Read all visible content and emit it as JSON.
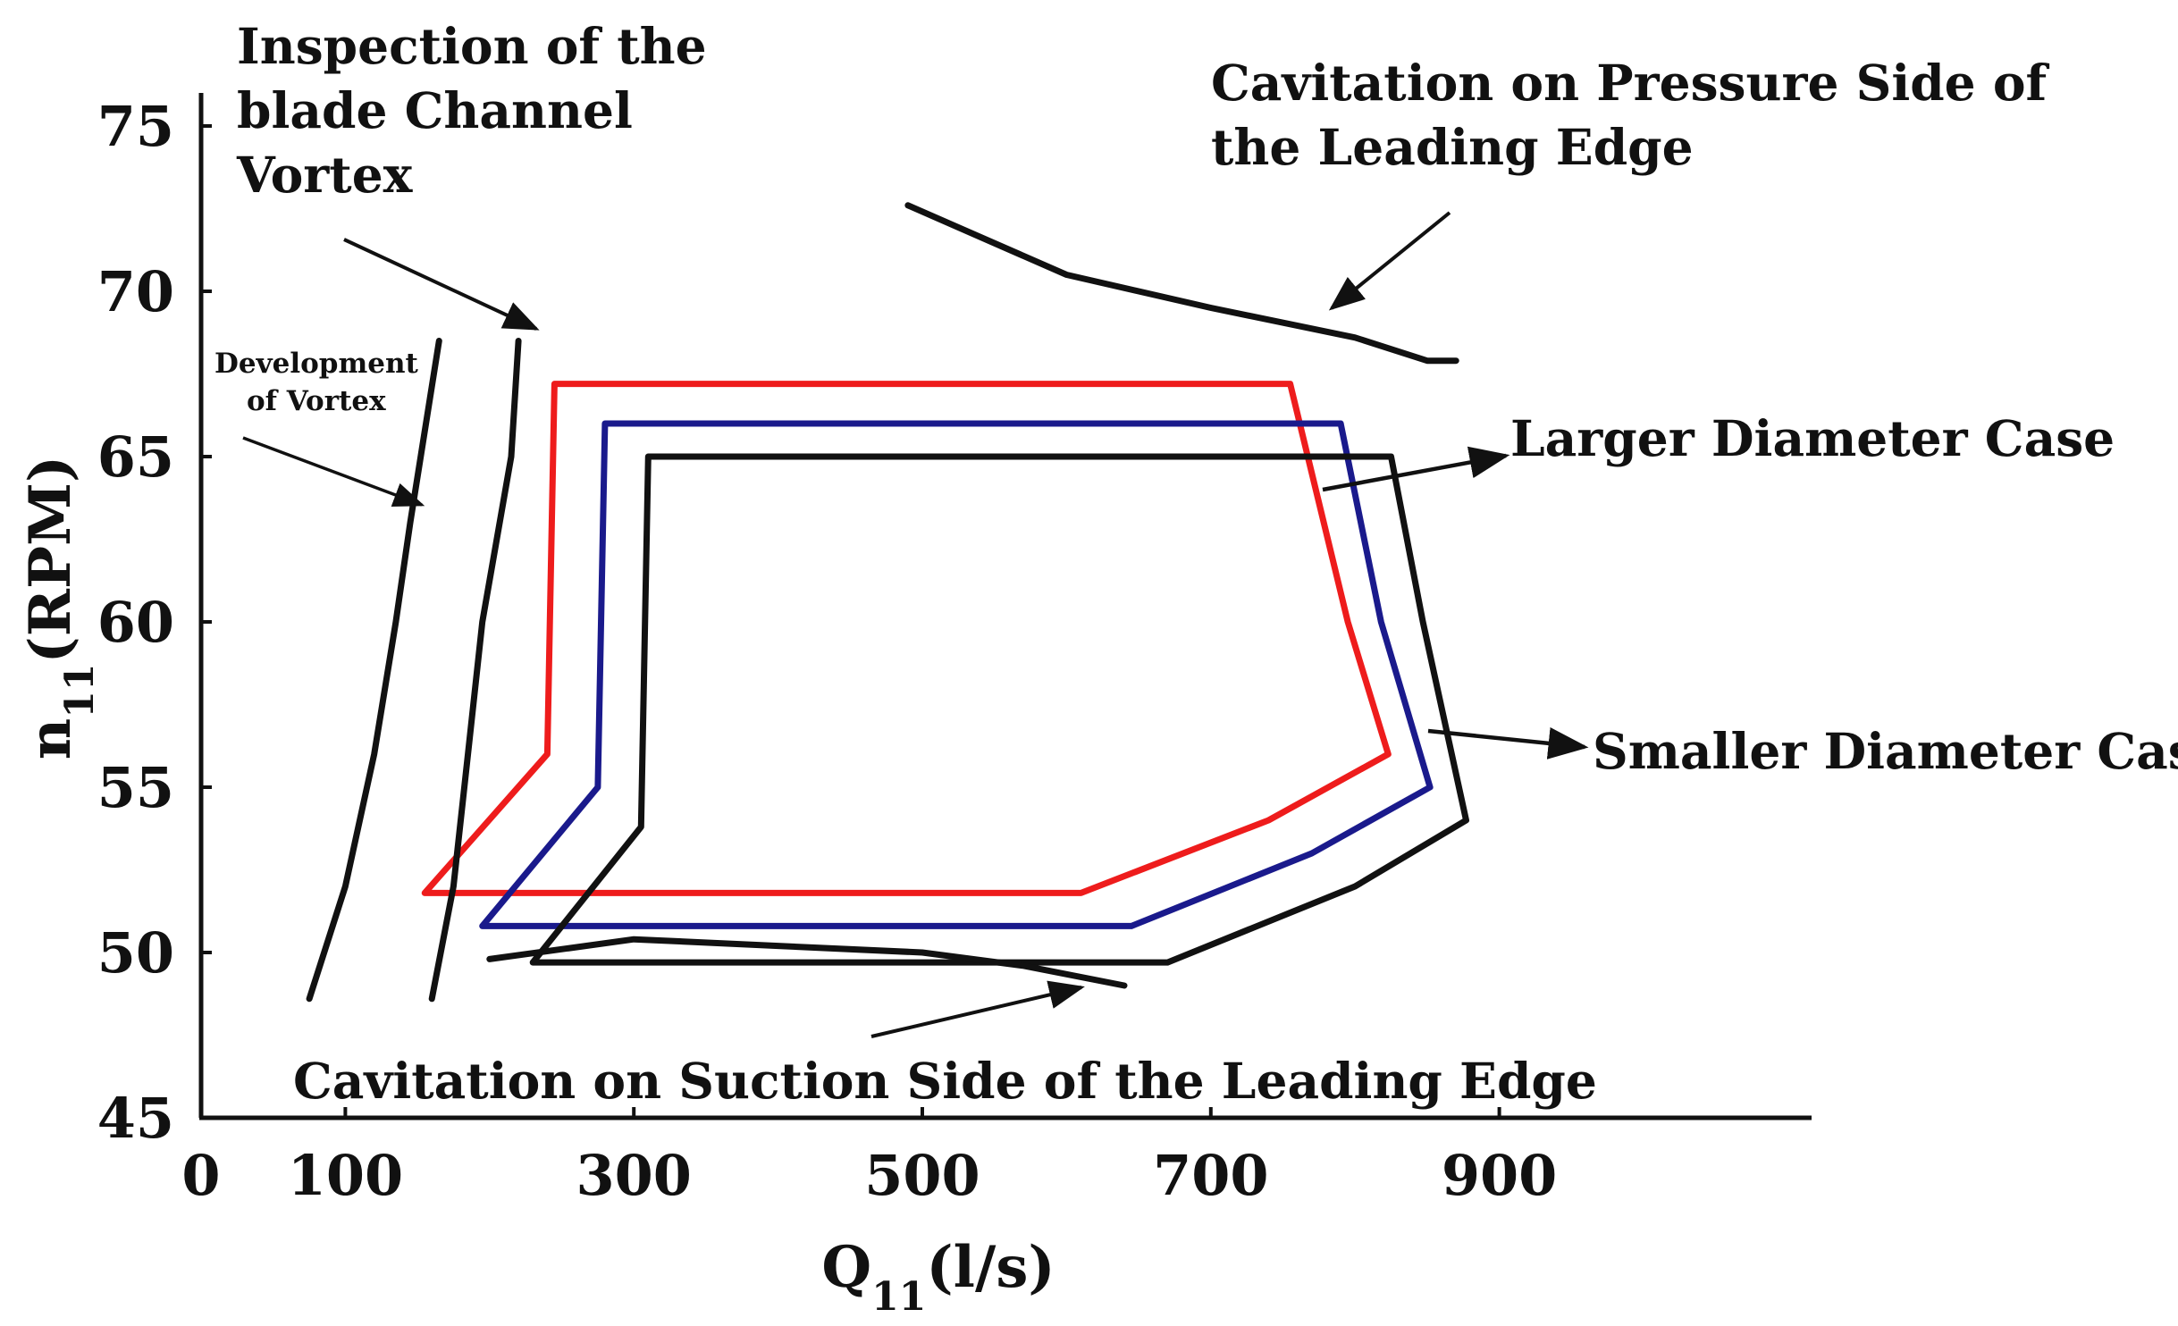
{
  "chart_data": {
    "type": "line",
    "title": "",
    "xlabel": {
      "main": "Q",
      "sub": "11",
      "unit": "(l/s)"
    },
    "ylabel": {
      "main": "n",
      "sub": "11",
      "unit": "(RPM)"
    },
    "xlim": [
      0,
      1000
    ],
    "ylim": [
      45,
      76
    ],
    "x_ticks": [
      0,
      100,
      300,
      500,
      700,
      900
    ],
    "x_tick_labels": [
      "0",
      "100",
      "300",
      "500",
      "700",
      "900"
    ],
    "y_ticks": [
      45,
      50,
      55,
      60,
      65,
      70,
      75
    ],
    "y_tick_labels": [
      "45",
      "50",
      "55",
      "60",
      "65",
      "70",
      "75"
    ],
    "grid": false,
    "legend": "none",
    "colors": {
      "red": "#ee1c1c",
      "blue": "#1a1a8c",
      "black": "#111111"
    },
    "series": [
      {
        "name": "red-envelope",
        "color": "#ee1c1c",
        "closed": true,
        "points": [
          [
            155,
            51.8
          ],
          [
            240,
            56
          ],
          [
            245,
            67.2
          ],
          [
            755,
            67.2
          ],
          [
            795,
            60
          ],
          [
            823,
            56
          ],
          [
            740,
            54
          ],
          [
            610,
            51.8
          ]
        ]
      },
      {
        "name": "blue-envelope",
        "color": "#1a1a8c",
        "closed": true,
        "points": [
          [
            195,
            50.8
          ],
          [
            275,
            55
          ],
          [
            280,
            66
          ],
          [
            790,
            66
          ],
          [
            818,
            60
          ],
          [
            852,
            55
          ],
          [
            770,
            53
          ],
          [
            645,
            50.8
          ]
        ]
      },
      {
        "name": "black-envelope",
        "color": "#111111",
        "closed": true,
        "points": [
          [
            230,
            49.7
          ],
          [
            305,
            53.8
          ],
          [
            310,
            65
          ],
          [
            825,
            65
          ],
          [
            847,
            60
          ],
          [
            877,
            54
          ],
          [
            800,
            52
          ],
          [
            670,
            49.7
          ]
        ]
      },
      {
        "name": "development-of-vortex-boundary",
        "color": "#111111",
        "closed": false,
        "points": [
          [
            75,
            48.6
          ],
          [
            100,
            52
          ],
          [
            120,
            56
          ],
          [
            135,
            60
          ],
          [
            145,
            63
          ],
          [
            165,
            68.5
          ]
        ]
      },
      {
        "name": "blade-channel-vortex-boundary",
        "color": "#111111",
        "closed": false,
        "points": [
          [
            160,
            48.6
          ],
          [
            175,
            52
          ],
          [
            185,
            56
          ],
          [
            195,
            60
          ],
          [
            215,
            65
          ],
          [
            220,
            68.5
          ]
        ]
      },
      {
        "name": "pressure-side-cavitation-boundary",
        "color": "#111111",
        "closed": false,
        "points": [
          [
            490,
            72.6
          ],
          [
            600,
            70.5
          ],
          [
            700,
            69.5
          ],
          [
            800,
            68.6
          ],
          [
            850,
            67.9
          ],
          [
            870,
            67.9
          ]
        ]
      },
      {
        "name": "suction-side-cavitation-boundary",
        "color": "#111111",
        "closed": false,
        "points": [
          [
            200,
            49.8
          ],
          [
            300,
            50.4
          ],
          [
            400,
            50.2
          ],
          [
            500,
            50
          ],
          [
            570,
            49.6
          ],
          [
            640,
            49
          ]
        ]
      }
    ],
    "annotations": [
      {
        "name": "blade-channel-vortex",
        "lines": [
          "Inspection of the",
          "blade Channel",
          "Vortex"
        ]
      },
      {
        "name": "pressure-side",
        "lines": [
          "Cavitation on Pressure Side of",
          "the Leading Edge"
        ]
      },
      {
        "name": "development-of-vortex",
        "lines": [
          "Development",
          "of Vortex"
        ]
      },
      {
        "name": "larger-diameter",
        "lines": [
          "Larger Diameter Case"
        ]
      },
      {
        "name": "smaller-diameter",
        "lines": [
          "Smaller Diameter Case"
        ]
      },
      {
        "name": "suction-side",
        "lines": [
          "Cavitation on Suction Side of the Leading Edge"
        ]
      }
    ]
  }
}
